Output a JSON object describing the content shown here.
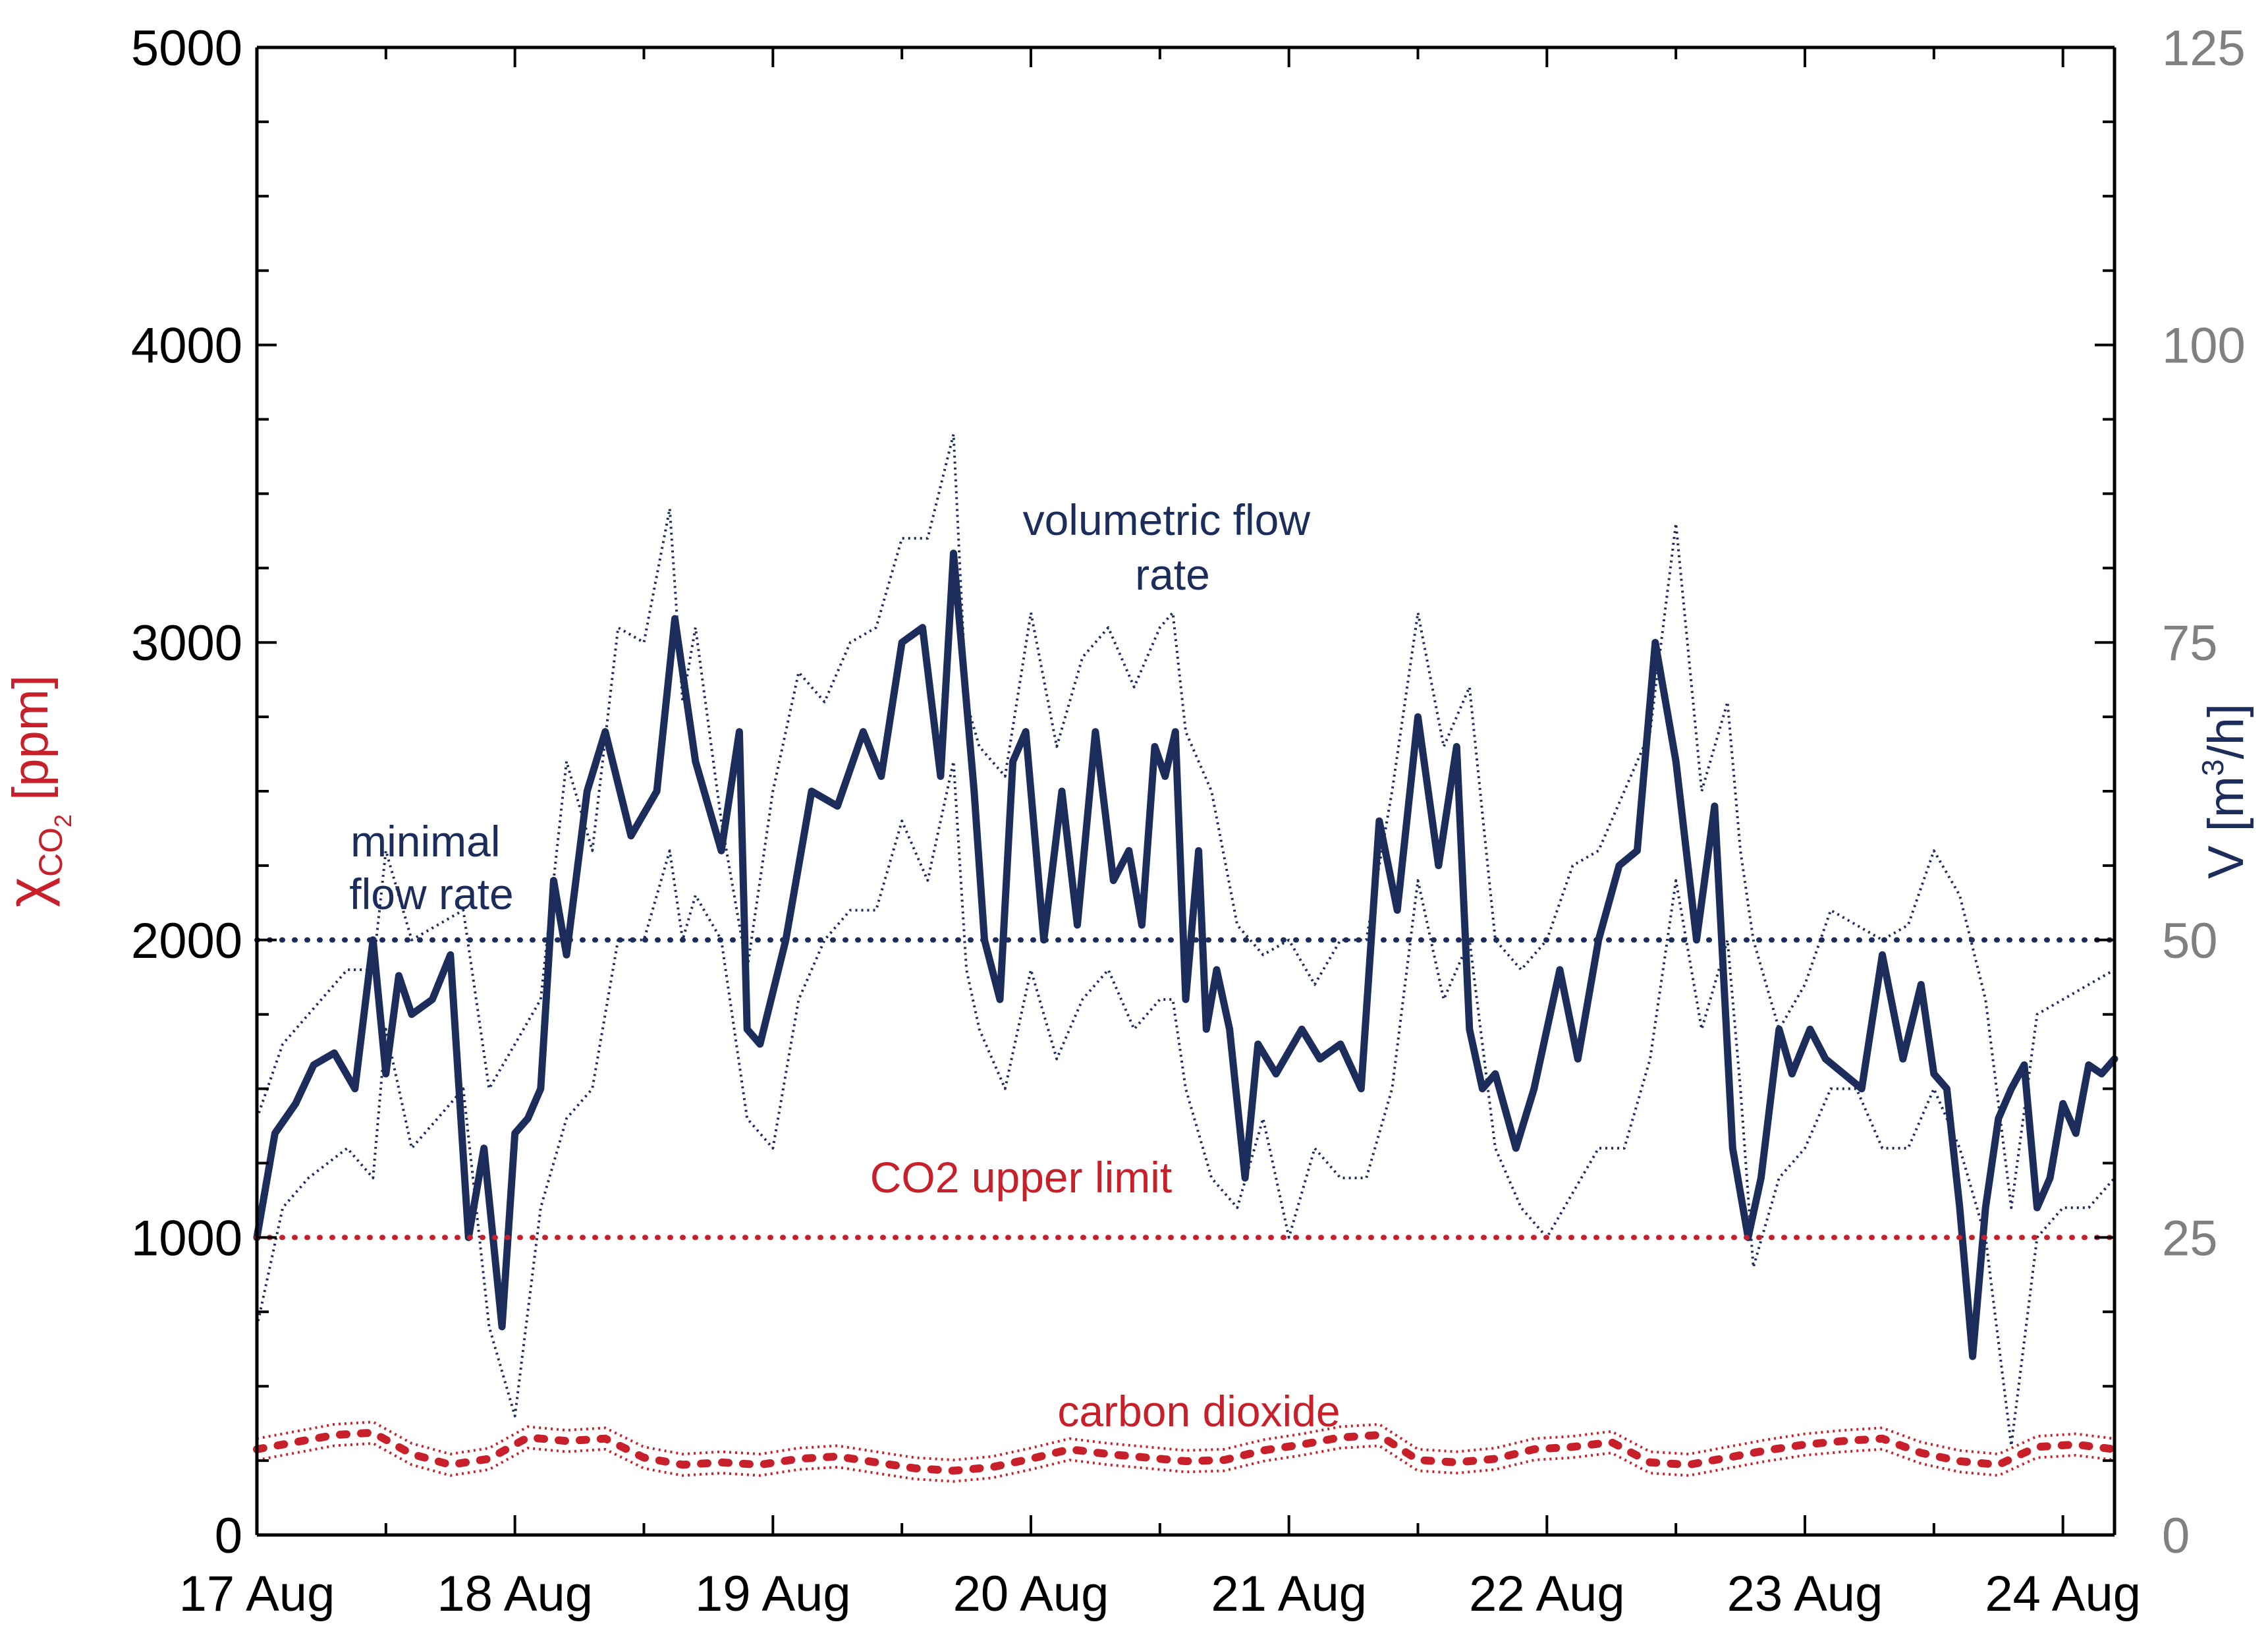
{
  "colors": {
    "co2": "#c8202a",
    "flow": "#1c2d5c",
    "right_axis": "#808080",
    "axis": "#000000"
  },
  "chart_data": {
    "type": "line",
    "x_ticks": [
      "17 Aug",
      "18 Aug",
      "19 Aug",
      "20 Aug",
      "21 Aug",
      "22 Aug",
      "23 Aug",
      "24 Aug"
    ],
    "xlim": [
      0,
      7.2
    ],
    "ylabel": {
      "base": "χ",
      "sub": "CO",
      "subsub": "2",
      "unit": "[ppm]"
    },
    "ylim": [
      0,
      5000
    ],
    "y_ticks": [
      "0",
      "1000",
      "2000",
      "3000",
      "4000",
      "5000"
    ],
    "y2label": {
      "text": "V [m",
      "sup": "3",
      "tail": "/h]"
    },
    "y2lim": [
      0,
      125
    ],
    "y2_ticks": [
      "0",
      "25",
      "50",
      "75",
      "100",
      "125"
    ],
    "annotations": {
      "minimal": [
        "minimal",
        "flow rate"
      ],
      "volumetric": [
        "volumetric flow",
        "rate"
      ],
      "co2_limit": "CO2 upper limit",
      "carbon": "carbon dioxide"
    },
    "reference_lines": [
      {
        "name": "minimal flow rate",
        "axis": "y",
        "value": 2000
      },
      {
        "name": "CO2 upper limit",
        "axis": "y",
        "value": 1000
      }
    ],
    "series": [
      {
        "name": "volumetric flow rate",
        "axis": "y",
        "x": [
          0,
          0.07,
          0.15,
          0.22,
          0.3,
          0.38,
          0.45,
          0.5,
          0.55,
          0.6,
          0.68,
          0.75,
          0.82,
          0.88,
          0.95,
          1,
          1.05,
          1.1,
          1.15,
          1.2,
          1.28,
          1.35,
          1.45,
          1.55,
          1.62,
          1.7,
          1.8,
          1.87,
          1.9,
          1.95,
          2.05,
          2.15,
          2.25,
          2.35,
          2.42,
          2.5,
          2.58,
          2.65,
          2.7,
          2.78,
          2.82,
          2.88,
          2.93,
          2.98,
          3.05,
          3.12,
          3.18,
          3.25,
          3.32,
          3.38,
          3.43,
          3.48,
          3.52,
          3.56,
          3.6,
          3.65,
          3.68,
          3.72,
          3.77,
          3.83,
          3.88,
          3.95,
          4.05,
          4.12,
          4.2,
          4.28,
          4.35,
          4.42,
          4.5,
          4.58,
          4.65,
          4.7,
          4.75,
          4.8,
          4.88,
          4.95,
          5.05,
          5.12,
          5.2,
          5.28,
          5.35,
          5.42,
          5.5,
          5.58,
          5.65,
          5.72,
          5.78,
          5.83,
          5.9,
          5.95,
          6.02,
          6.08,
          6.15,
          6.22,
          6.3,
          6.38,
          6.45,
          6.5,
          6.55,
          6.6,
          6.65,
          6.7,
          6.75,
          6.8,
          6.85,
          6.9,
          6.95,
          7,
          7.05,
          7.1,
          7.15,
          7.2
        ],
        "values": [
          1000,
          1350,
          1450,
          1580,
          1620,
          1500,
          2000,
          1550,
          1880,
          1750,
          1800,
          1950,
          1000,
          1300,
          700,
          1350,
          1400,
          1500,
          2200,
          1950,
          2500,
          2700,
          2350,
          2500,
          3080,
          2600,
          2300,
          2700,
          1700,
          1650,
          2000,
          2500,
          2450,
          2700,
          2550,
          3000,
          3050,
          2550,
          3300,
          2500,
          2000,
          1800,
          2600,
          2700,
          2000,
          2500,
          2050,
          2700,
          2200,
          2300,
          2050,
          2650,
          2550,
          2700,
          1800,
          2300,
          1700,
          1900,
          1700,
          1200,
          1650,
          1550,
          1700,
          1600,
          1650,
          1500,
          2400,
          2100,
          2750,
          2250,
          2650,
          1700,
          1500,
          1550,
          1300,
          1500,
          1900,
          1600,
          2000,
          2250,
          2300,
          3000,
          2600,
          2000,
          2450,
          1300,
          1000,
          1200,
          1700,
          1550,
          1700,
          1600,
          1550,
          1500,
          1950,
          1600,
          1850,
          1550,
          1500,
          1100,
          600,
          1100,
          1400,
          1500,
          1580,
          1100,
          1200,
          1450,
          1350,
          1580,
          1550,
          1600
        ]
      },
      {
        "name": "volumetric flow rate upper band",
        "axis": "y",
        "x": [
          0,
          0.1,
          0.2,
          0.35,
          0.45,
          0.5,
          0.6,
          0.7,
          0.8,
          0.9,
          1,
          1.1,
          1.2,
          1.3,
          1.4,
          1.5,
          1.6,
          1.65,
          1.7,
          1.8,
          1.9,
          2,
          2.1,
          2.2,
          2.3,
          2.4,
          2.5,
          2.6,
          2.7,
          2.75,
          2.8,
          2.9,
          3,
          3.1,
          3.2,
          3.3,
          3.4,
          3.5,
          3.55,
          3.6,
          3.7,
          3.8,
          3.9,
          4,
          4.1,
          4.2,
          4.3,
          4.4,
          4.5,
          4.6,
          4.7,
          4.8,
          4.9,
          5,
          5.1,
          5.2,
          5.3,
          5.4,
          5.5,
          5.6,
          5.7,
          5.75,
          5.8,
          5.9,
          6,
          6.1,
          6.2,
          6.3,
          6.4,
          6.5,
          6.6,
          6.7,
          6.8,
          6.9,
          7,
          7.1,
          7.2
        ],
        "values": [
          1400,
          1650,
          1750,
          1900,
          1900,
          2300,
          2000,
          2050,
          2100,
          1500,
          1650,
          1800,
          2600,
          2300,
          3050,
          3000,
          3450,
          2800,
          3050,
          2400,
          1900,
          2500,
          2900,
          2800,
          3000,
          3050,
          3350,
          3350,
          3700,
          2800,
          2650,
          2550,
          3100,
          2650,
          2950,
          3050,
          2850,
          3050,
          3100,
          2700,
          2500,
          2050,
          1950,
          2000,
          1850,
          2000,
          2000,
          2500,
          3100,
          2650,
          2850,
          2000,
          1900,
          2000,
          2250,
          2300,
          2500,
          2700,
          3400,
          2500,
          2800,
          2300,
          2000,
          1700,
          1850,
          2100,
          2050,
          2000,
          2050,
          2300,
          2150,
          1800,
          1100,
          1750,
          1800,
          1850,
          1900
        ]
      },
      {
        "name": "volumetric flow rate lower band",
        "axis": "y",
        "x": [
          0,
          0.1,
          0.2,
          0.35,
          0.45,
          0.5,
          0.6,
          0.7,
          0.8,
          0.9,
          1,
          1.1,
          1.2,
          1.3,
          1.4,
          1.5,
          1.6,
          1.65,
          1.7,
          1.8,
          1.9,
          2,
          2.1,
          2.2,
          2.3,
          2.4,
          2.5,
          2.6,
          2.7,
          2.75,
          2.8,
          2.9,
          3,
          3.1,
          3.2,
          3.3,
          3.4,
          3.5,
          3.55,
          3.6,
          3.7,
          3.8,
          3.9,
          4,
          4.1,
          4.2,
          4.3,
          4.4,
          4.5,
          4.6,
          4.7,
          4.8,
          4.9,
          5,
          5.1,
          5.2,
          5.3,
          5.4,
          5.5,
          5.6,
          5.7,
          5.75,
          5.8,
          5.9,
          6,
          6.1,
          6.2,
          6.3,
          6.4,
          6.5,
          6.6,
          6.7,
          6.8,
          6.9,
          7,
          7.1,
          7.2
        ],
        "values": [
          700,
          1100,
          1200,
          1300,
          1200,
          1700,
          1300,
          1400,
          1500,
          700,
          400,
          1100,
          1400,
          1500,
          2000,
          2000,
          2300,
          2000,
          2150,
          2000,
          1400,
          1300,
          1800,
          2000,
          2100,
          2100,
          2400,
          2200,
          2600,
          1900,
          1700,
          1500,
          1900,
          1600,
          1800,
          1900,
          1700,
          1800,
          1800,
          1500,
          1200,
          1100,
          1400,
          1000,
          1300,
          1200,
          1200,
          1500,
          2200,
          1800,
          2000,
          1300,
          1100,
          1000,
          1150,
          1300,
          1300,
          1600,
          2200,
          1700,
          2000,
          1500,
          900,
          1200,
          1300,
          1500,
          1500,
          1300,
          1300,
          1500,
          1300,
          1000,
          300,
          1000,
          1100,
          1100,
          1200
        ]
      },
      {
        "name": "carbon dioxide",
        "axis": "y2",
        "x": [
          0,
          0.15,
          0.3,
          0.45,
          0.6,
          0.75,
          0.9,
          1.05,
          1.2,
          1.35,
          1.5,
          1.65,
          1.8,
          1.95,
          2.1,
          2.25,
          2.4,
          2.55,
          2.7,
          2.85,
          3,
          3.15,
          3.3,
          3.45,
          3.6,
          3.75,
          3.9,
          4.05,
          4.2,
          4.35,
          4.5,
          4.65,
          4.8,
          4.95,
          5.1,
          5.25,
          5.4,
          5.55,
          5.7,
          5.85,
          6,
          6.15,
          6.3,
          6.45,
          6.6,
          6.75,
          6.9,
          7.05,
          7.2
        ],
        "values": [
          7.2,
          7.8,
          8.4,
          8.6,
          6.8,
          5.9,
          6.4,
          8.2,
          7.9,
          8.1,
          6.5,
          5.9,
          6.1,
          5.9,
          6.4,
          6.6,
          6.1,
          5.6,
          5.4,
          5.7,
          6.4,
          7.2,
          6.8,
          6.5,
          6.2,
          6.3,
          7.1,
          7.6,
          8.2,
          8.4,
          6.3,
          6.1,
          6.4,
          7.2,
          7.4,
          7.8,
          6.1,
          5.9,
          6.5,
          7.1,
          7.6,
          7.9,
          8.1,
          6.9,
          6.2,
          5.9,
          7.4,
          7.6,
          7.2
        ]
      }
    ]
  }
}
